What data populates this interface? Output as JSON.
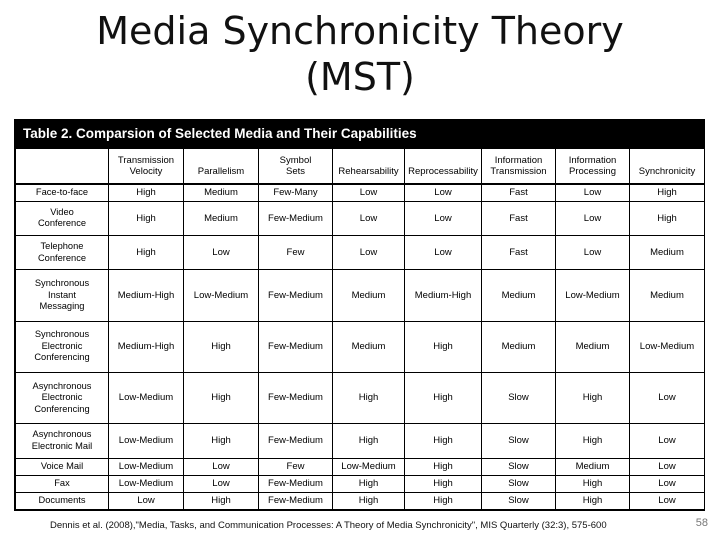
{
  "slide": {
    "title_line1": "Media Synchronicity Theory",
    "title_line2": "(MST)",
    "citation": "Dennis et al. (2008),\"Media, Tasks, and Communication Processes: A Theory of Media Synchronicity\", MIS Quarterly (32:3), 575-600",
    "page_number": "58"
  },
  "table": {
    "caption": "Table 2.  Comparsion of Selected Media and Their Capabilities",
    "headers": [
      [
        "",
        ""
      ],
      [
        "Transmission",
        "Velocity"
      ],
      [
        "",
        "Parallelism"
      ],
      [
        "Symbol",
        "Sets"
      ],
      [
        "",
        "Rehearsability"
      ],
      [
        "",
        "Reprocessability"
      ],
      [
        "Information",
        "Transmission"
      ],
      [
        "Information",
        "Processing"
      ],
      [
        "",
        "Synchronicity"
      ]
    ],
    "rows": [
      {
        "media": [
          "Face-to-face"
        ],
        "values": [
          "High",
          "Medium",
          "Few-Many",
          "Low",
          "Low",
          "Fast",
          "Low",
          "High"
        ]
      },
      {
        "media": [
          "Video",
          "Conference"
        ],
        "values": [
          "High",
          "Medium",
          "Few-Medium",
          "Low",
          "Low",
          "Fast",
          "Low",
          "High"
        ]
      },
      {
        "media": [
          "Telephone",
          "Conference"
        ],
        "values": [
          "High",
          "Low",
          "Few",
          "Low",
          "Low",
          "Fast",
          "Low",
          "Medium"
        ]
      },
      {
        "media": [
          "Synchronous",
          "Instant",
          "Messaging"
        ],
        "values": [
          "Medium-High",
          "Low-Medium",
          "Few-Medium",
          "Medium",
          "Medium-High",
          "Medium",
          "Low-Medium",
          "Medium"
        ]
      },
      {
        "media": [
          "Synchronous",
          "Electronic",
          "Conferencing"
        ],
        "values": [
          "Medium-High",
          "High",
          "Few-Medium",
          "Medium",
          "High",
          "Medium",
          "Medium",
          "Low-Medium"
        ]
      },
      {
        "media": [
          "Asynchronous",
          "Electronic",
          "Conferencing"
        ],
        "values": [
          "Low-Medium",
          "High",
          "Few-Medium",
          "High",
          "High",
          "Slow",
          "High",
          "Low"
        ]
      },
      {
        "media": [
          "Asynchronous",
          "Electronic Mail"
        ],
        "values": [
          "Low-Medium",
          "High",
          "Few-Medium",
          "High",
          "High",
          "Slow",
          "High",
          "Low"
        ]
      },
      {
        "media": [
          "Voice Mail"
        ],
        "values": [
          "Low-Medium",
          "Low",
          "Few",
          "Low-Medium",
          "High",
          "Slow",
          "Medium",
          "Low"
        ]
      },
      {
        "media": [
          "Fax"
        ],
        "values": [
          "Low-Medium",
          "Low",
          "Few-Medium",
          "High",
          "High",
          "Slow",
          "High",
          "Low"
        ]
      },
      {
        "media": [
          "Documents"
        ],
        "values": [
          "Low",
          "High",
          "Few-Medium",
          "High",
          "High",
          "Slow",
          "High",
          "Low"
        ]
      }
    ]
  }
}
